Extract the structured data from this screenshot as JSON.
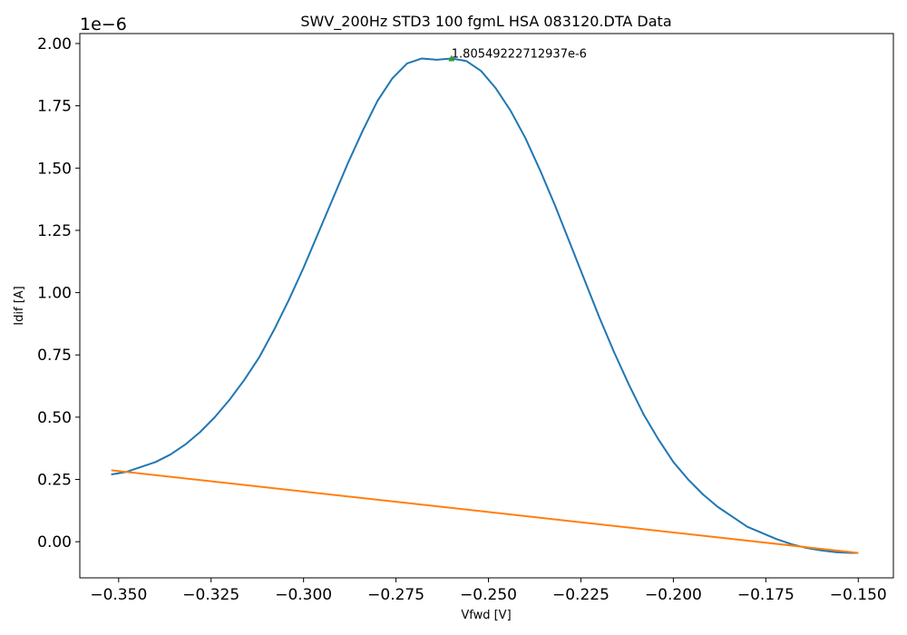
{
  "chart_data": {
    "type": "line",
    "title": "SWV_200Hz STD3 100 fgmL HSA 083120.DTA Data",
    "xlabel": "Vfwd [V]",
    "ylabel": "Idif [A]",
    "y_offset_label": "1e−6",
    "xlim": [
      -0.3605,
      -0.1405
    ],
    "ylim": [
      -0.145,
      2.04
    ],
    "x_ticks": [
      -0.35,
      -0.325,
      -0.3,
      -0.275,
      -0.25,
      -0.225,
      -0.2,
      -0.175,
      -0.15
    ],
    "x_tick_labels": [
      "−0.350",
      "−0.325",
      "−0.300",
      "−0.275",
      "−0.250",
      "−0.225",
      "−0.200",
      "−0.175",
      "−0.150"
    ],
    "y_ticks": [
      0.0,
      0.25,
      0.5,
      0.75,
      1.0,
      1.25,
      1.5,
      1.75,
      2.0
    ],
    "y_tick_labels": [
      "0.00",
      "0.25",
      "0.50",
      "0.75",
      "1.00",
      "1.25",
      "1.50",
      "1.75",
      "2.00"
    ],
    "grid": false,
    "series": [
      {
        "color": "#1f77b4",
        "x": [
          -0.352,
          -0.348,
          -0.344,
          -0.34,
          -0.336,
          -0.332,
          -0.328,
          -0.324,
          -0.32,
          -0.316,
          -0.312,
          -0.308,
          -0.304,
          -0.3,
          -0.296,
          -0.292,
          -0.288,
          -0.284,
          -0.28,
          -0.276,
          -0.272,
          -0.268,
          -0.264,
          -0.26,
          -0.256,
          -0.252,
          -0.248,
          -0.244,
          -0.24,
          -0.236,
          -0.232,
          -0.228,
          -0.224,
          -0.22,
          -0.216,
          -0.212,
          -0.208,
          -0.204,
          -0.2,
          -0.196,
          -0.192,
          -0.188,
          -0.184,
          -0.18,
          -0.176,
          -0.172,
          -0.168,
          -0.164,
          -0.16,
          -0.156,
          -0.152,
          -0.15
        ],
        "y": [
          0.27,
          0.28,
          0.3,
          0.32,
          0.35,
          0.39,
          0.44,
          0.5,
          0.57,
          0.65,
          0.74,
          0.85,
          0.97,
          1.1,
          1.24,
          1.38,
          1.52,
          1.65,
          1.77,
          1.86,
          1.92,
          1.94,
          1.935,
          1.94,
          1.93,
          1.89,
          1.82,
          1.73,
          1.62,
          1.49,
          1.35,
          1.2,
          1.05,
          0.9,
          0.76,
          0.63,
          0.51,
          0.41,
          0.32,
          0.25,
          0.19,
          0.14,
          0.1,
          0.06,
          0.035,
          0.01,
          -0.01,
          -0.025,
          -0.035,
          -0.042,
          -0.045,
          -0.045
        ]
      },
      {
        "color": "#ff7f0e",
        "x": [
          -0.352,
          -0.15
        ],
        "y": [
          0.287,
          -0.045
        ]
      }
    ],
    "peak_marker": {
      "x": -0.26,
      "y": 1.94,
      "color": "#2ca02c",
      "label": "1.80549222712937e-6"
    }
  }
}
